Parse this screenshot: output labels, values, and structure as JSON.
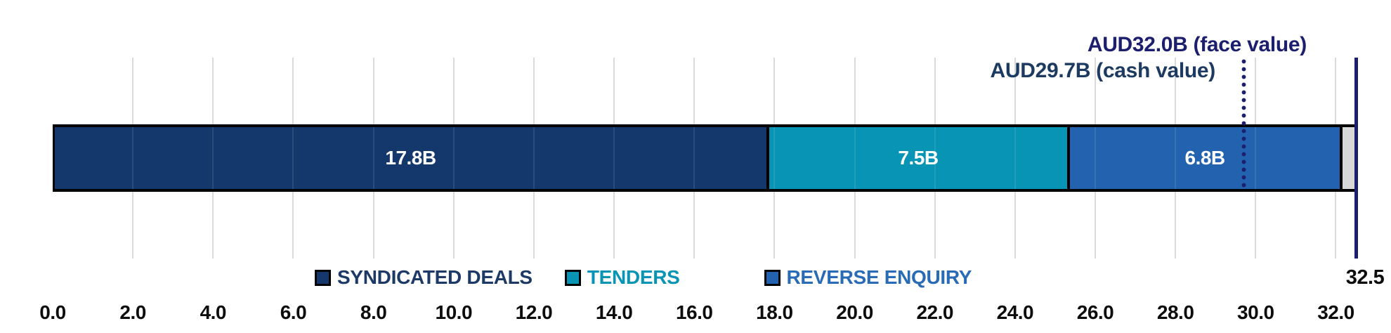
{
  "chart_data": {
    "type": "bar",
    "orientation": "horizontal",
    "stacked": true,
    "title": "",
    "grid": true,
    "legend_position": "bottom",
    "series": [
      {
        "name": "SYNDICATED DEALS",
        "value": 17.8,
        "bar_label": "17.8B",
        "color": "#14386B",
        "legend_text_color": "#1D3A66"
      },
      {
        "name": "TENDERS",
        "value": 7.5,
        "bar_label": "7.5B",
        "color": "#0894B5",
        "legend_text_color": "#0894B5"
      },
      {
        "name": "REVERSE ENQUIRY",
        "value": 6.8,
        "bar_label": "6.8B",
        "color": "#2262AE",
        "legend_text_color": "#2A6BB5"
      }
    ],
    "remainder_color": "#D8D8D8",
    "x_axis": {
      "min": 0.0,
      "max": 32.5,
      "tick_step": 2.0,
      "tick_labels": [
        "0.0",
        "2.0",
        "4.0",
        "6.0",
        "8.0",
        "10.0",
        "12.0",
        "14.0",
        "16.0",
        "18.0",
        "20.0",
        "22.0",
        "24.0",
        "26.0",
        "28.0",
        "30.0",
        "32.0"
      ],
      "tick_color": "#0D0D0D",
      "gridline_color": "#DADADA"
    },
    "limit_line": {
      "value": 32.5,
      "label": "32.5",
      "color": "#1C1E6E",
      "label_color": "#0D0D0D"
    },
    "annotations": [
      {
        "text": "AUD32.0B (face value)",
        "value": 32.0,
        "color": "#1C1E6E",
        "line_style": "none"
      },
      {
        "text": "AUD29.7B (cash value)",
        "value": 29.7,
        "color": "#1D3A61",
        "line_style": "dotted",
        "line_color": "#1C1E6E"
      }
    ]
  }
}
